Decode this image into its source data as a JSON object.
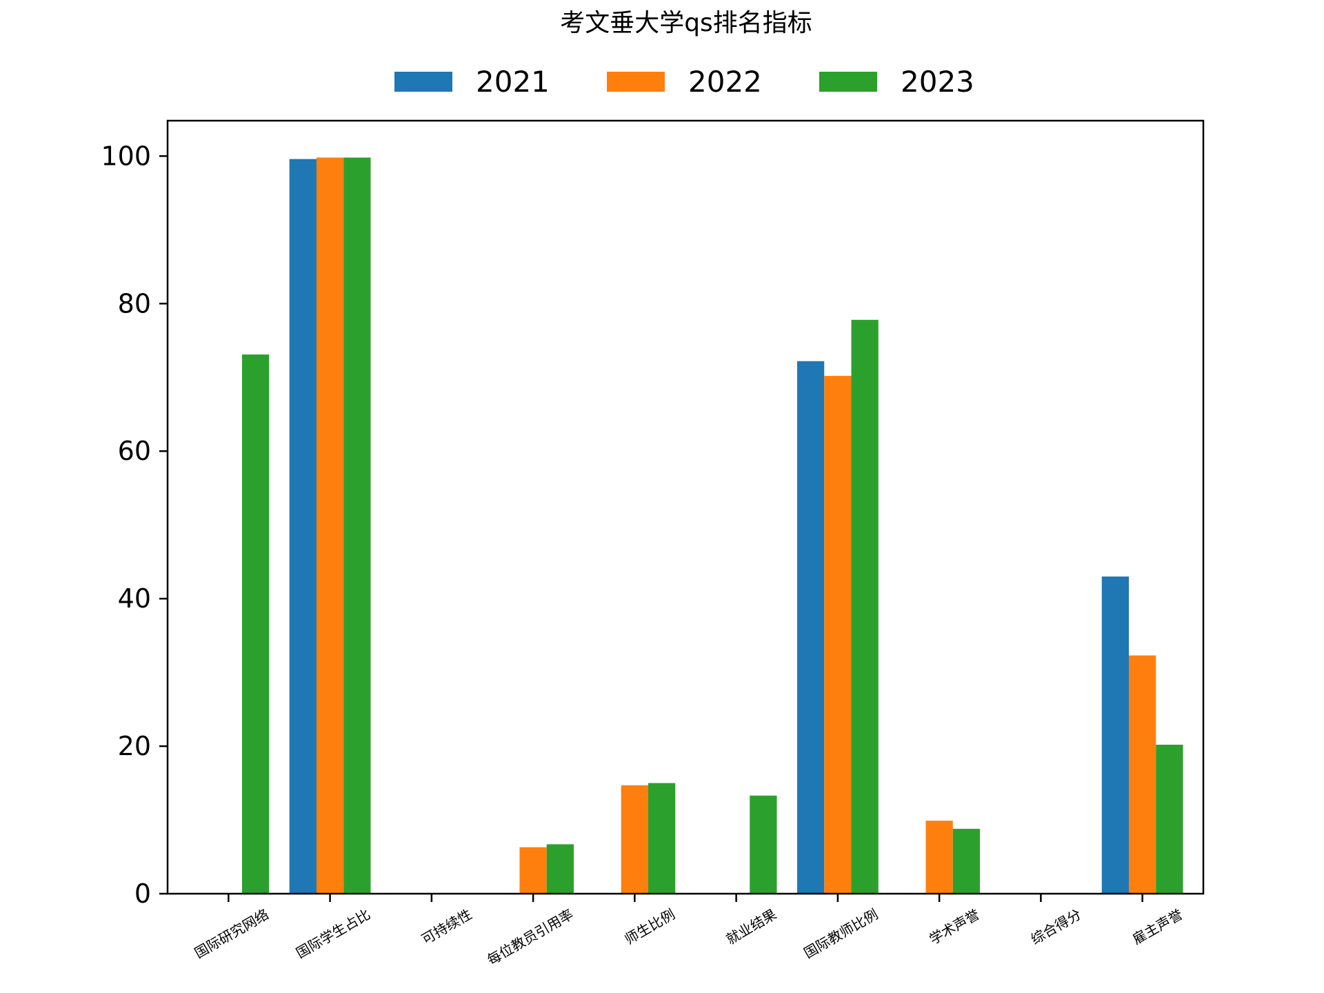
{
  "chart_data": {
    "type": "bar",
    "title": "考文垂大学qs排名指标",
    "xlabel": "",
    "ylabel": "",
    "categories": [
      "国际研究网络",
      "国际学生占比",
      "可持续性",
      "每位教员引用率",
      "师生比例",
      "就业结果",
      "国际教师比例",
      "学术声誉",
      "综合得分",
      "雇主声誉"
    ],
    "series": [
      {
        "name": "2021",
        "color": "#1f77b4",
        "values": [
          0,
          99.6,
          0,
          0,
          0,
          0,
          72.2,
          0,
          0,
          43.0
        ]
      },
      {
        "name": "2022",
        "color": "#ff7f0e",
        "values": [
          0,
          99.8,
          0,
          6.3,
          14.7,
          0,
          70.2,
          9.9,
          0,
          32.3
        ]
      },
      {
        "name": "2023",
        "color": "#2ca02c",
        "values": [
          73.1,
          99.8,
          0,
          6.7,
          15.0,
          13.3,
          77.8,
          8.8,
          0,
          20.2
        ]
      }
    ],
    "ylim": [
      0,
      104.8
    ],
    "yticks": [
      0,
      20,
      40,
      60,
      80,
      100
    ],
    "grid": false,
    "legend_position": "top-center"
  }
}
